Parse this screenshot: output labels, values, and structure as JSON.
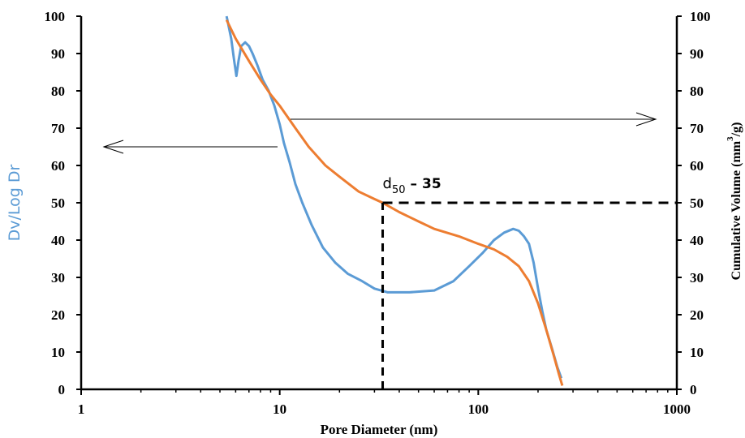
{
  "chart_data": {
    "type": "line",
    "xlabel": "Pore Diameter (nm)",
    "ylabel": "Dv/Log Dr",
    "y2label_main": "Cumulative Volume (mm",
    "y2label_sup": "3",
    "y2label_end": "/g)",
    "xscale": "log",
    "xlim": [
      1,
      1000
    ],
    "ylim": [
      0,
      100
    ],
    "y2lim": [
      0,
      100
    ],
    "x_ticks": [
      "1",
      "10",
      "100",
      "1000"
    ],
    "y_ticks": [
      "0",
      "10",
      "20",
      "30",
      "40",
      "50",
      "60",
      "70",
      "80",
      "90",
      "100"
    ],
    "y2_ticks": [
      "0",
      "10",
      "20",
      "30",
      "40",
      "50",
      "60",
      "70",
      "80",
      "90",
      "100"
    ],
    "grid": false,
    "legend": "none",
    "annotation": {
      "label_main": "d",
      "label_sub": "50",
      "label_dash": "–",
      "value": "35",
      "x": 33,
      "y": 50
    },
    "series": [
      {
        "axis": "left",
        "color": "#5b9bd5",
        "x": [
          5.4,
          5.7,
          5.9,
          6.05,
          6.2,
          6.4,
          6.7,
          7.0,
          7.3,
          7.7,
          8.2,
          8.8,
          9.4,
          10.0,
          10.5,
          11.2,
          12.0,
          13.0,
          14.5,
          16.5,
          19.0,
          22.0,
          26.0,
          30.0,
          35.0,
          45.0,
          60.0,
          75.0,
          90.0,
          105.0,
          120.0,
          135.0,
          150.0,
          160.0,
          170.0,
          180.0,
          190.0,
          200.0,
          210.0,
          220.0,
          235.0,
          250.0,
          262.0
        ],
        "y": [
          100,
          94,
          88,
          84,
          88,
          92,
          93,
          92,
          90,
          87,
          83,
          80,
          76,
          71,
          66,
          61,
          55,
          50,
          44,
          38,
          34,
          31,
          29,
          27,
          26,
          26,
          26.5,
          29,
          33,
          36.5,
          40,
          42,
          43,
          42.5,
          41,
          39,
          34,
          27,
          21,
          16,
          11,
          6,
          3
        ]
      },
      {
        "axis": "right",
        "color": "#ed7d31",
        "x": [
          5.4,
          6.0,
          7.0,
          8.0,
          9.0,
          10.0,
          12.0,
          14.0,
          17.0,
          20.0,
          25.0,
          30.0,
          33.0,
          40.0,
          50.0,
          60.0,
          80.0,
          100.0,
          120.0,
          140.0,
          160.0,
          180.0,
          200.0,
          220.0,
          240.0,
          255.0,
          265.0
        ],
        "y": [
          99,
          94,
          88,
          83,
          79,
          76,
          70,
          65,
          60,
          57,
          53,
          51,
          50,
          47.5,
          45,
          43,
          41,
          39,
          37.5,
          35.5,
          33,
          29,
          23,
          16,
          9,
          4,
          1
        ]
      }
    ]
  }
}
